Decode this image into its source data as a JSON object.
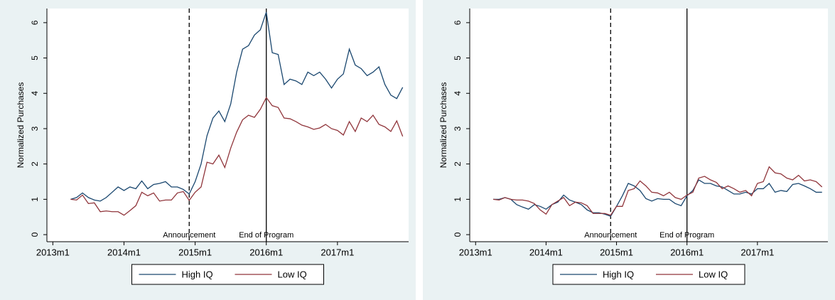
{
  "chart_data": [
    {
      "type": "line",
      "ylabel": "Normalized Purchases",
      "legend_position": "bottom",
      "xlim": [
        "2012m12",
        "2018m1"
      ],
      "ylim": [
        -0.2,
        6.4
      ],
      "xticks": [
        "2013m1",
        "2014m1",
        "2015m1",
        "2016m1",
        "2017m1"
      ],
      "yticks": [
        0,
        1,
        2,
        3,
        4,
        5,
        6
      ],
      "annotations": [
        {
          "x": "2014m12",
          "label": "Announcement",
          "style": "dashed"
        },
        {
          "x": "2016m1",
          "label": "End of Program",
          "style": "solid"
        }
      ],
      "x": [
        "2013m4",
        "2013m5",
        "2013m6",
        "2013m7",
        "2013m8",
        "2013m9",
        "2013m10",
        "2013m11",
        "2013m12",
        "2014m1",
        "2014m2",
        "2014m3",
        "2014m4",
        "2014m5",
        "2014m6",
        "2014m7",
        "2014m8",
        "2014m9",
        "2014m10",
        "2014m11",
        "2014m12",
        "2015m1",
        "2015m2",
        "2015m3",
        "2015m4",
        "2015m5",
        "2015m6",
        "2015m7",
        "2015m8",
        "2015m9",
        "2015m10",
        "2015m11",
        "2015m12",
        "2016m1",
        "2016m2",
        "2016m3",
        "2016m4",
        "2016m5",
        "2016m6",
        "2016m7",
        "2016m8",
        "2016m9",
        "2016m10",
        "2016m11",
        "2016m12",
        "2017m1",
        "2017m2",
        "2017m3",
        "2017m4",
        "2017m5",
        "2017m6",
        "2017m7",
        "2017m8",
        "2017m9",
        "2017m10",
        "2017m11",
        "2017m12"
      ],
      "series": [
        {
          "name": "High IQ",
          "color": "#1a476f",
          "values": [
            1.0,
            1.05,
            1.18,
            1.05,
            0.98,
            0.95,
            1.05,
            1.2,
            1.35,
            1.25,
            1.35,
            1.3,
            1.52,
            1.3,
            1.42,
            1.45,
            1.5,
            1.35,
            1.35,
            1.28,
            1.15,
            1.5,
            2.0,
            2.8,
            3.3,
            3.5,
            3.2,
            3.7,
            4.6,
            5.25,
            5.35,
            5.65,
            5.8,
            6.3,
            5.15,
            5.1,
            4.25,
            4.4,
            4.35,
            4.25,
            4.6,
            4.5,
            4.6,
            4.4,
            4.15,
            4.4,
            4.55,
            5.25,
            4.8,
            4.7,
            4.5,
            4.6,
            4.75,
            4.25,
            3.95,
            3.85,
            4.17
          ]
        },
        {
          "name": "Low IQ",
          "color": "#90353b",
          "values": [
            1.0,
            0.98,
            1.12,
            0.88,
            0.9,
            0.65,
            0.67,
            0.65,
            0.65,
            0.55,
            0.68,
            0.82,
            1.2,
            1.1,
            1.18,
            0.95,
            0.98,
            0.98,
            1.18,
            1.22,
            0.97,
            1.2,
            1.35,
            2.05,
            2.0,
            2.25,
            1.9,
            2.45,
            2.9,
            3.25,
            3.38,
            3.32,
            3.55,
            3.88,
            3.65,
            3.6,
            3.3,
            3.28,
            3.2,
            3.1,
            3.05,
            2.98,
            3.02,
            3.12,
            3.0,
            2.95,
            2.82,
            3.2,
            2.92,
            3.3,
            3.2,
            3.38,
            3.12,
            3.05,
            2.92,
            3.22,
            2.78
          ]
        }
      ]
    },
    {
      "type": "line",
      "ylabel": "Normalized Purchases",
      "legend_position": "bottom",
      "xlim": [
        "2012m12",
        "2018m1"
      ],
      "ylim": [
        -0.2,
        6.4
      ],
      "xticks": [
        "2013m1",
        "2014m1",
        "2015m1",
        "2016m1",
        "2017m1"
      ],
      "yticks": [
        0,
        1,
        2,
        3,
        4,
        5,
        6
      ],
      "annotations": [
        {
          "x": "2014m12",
          "label": "Announcement",
          "style": "dashed"
        },
        {
          "x": "2016m1",
          "label": "End of Program",
          "style": "solid"
        }
      ],
      "x": [
        "2013m4",
        "2013m5",
        "2013m6",
        "2013m7",
        "2013m8",
        "2013m9",
        "2013m10",
        "2013m11",
        "2013m12",
        "2014m1",
        "2014m2",
        "2014m3",
        "2014m4",
        "2014m5",
        "2014m6",
        "2014m7",
        "2014m8",
        "2014m9",
        "2014m10",
        "2014m11",
        "2014m12",
        "2015m1",
        "2015m2",
        "2015m3",
        "2015m4",
        "2015m5",
        "2015m6",
        "2015m7",
        "2015m8",
        "2015m9",
        "2015m10",
        "2015m11",
        "2015m12",
        "2016m1",
        "2016m2",
        "2016m3",
        "2016m4",
        "2016m5",
        "2016m6",
        "2016m7",
        "2016m8",
        "2016m9",
        "2016m10",
        "2016m11",
        "2016m12",
        "2017m1",
        "2017m2",
        "2017m3",
        "2017m4",
        "2017m5",
        "2017m6",
        "2017m7",
        "2017m8",
        "2017m9",
        "2017m10",
        "2017m11",
        "2017m12"
      ],
      "series": [
        {
          "name": "High IQ",
          "color": "#1a476f",
          "values": [
            1.0,
            1.0,
            1.05,
            1.0,
            0.85,
            0.78,
            0.72,
            0.85,
            0.8,
            0.72,
            0.85,
            0.92,
            1.12,
            0.98,
            0.92,
            0.85,
            0.7,
            0.62,
            0.62,
            0.58,
            0.52,
            0.8,
            1.1,
            1.45,
            1.38,
            1.25,
            1.02,
            0.95,
            1.02,
            1.0,
            1.0,
            0.88,
            0.82,
            1.1,
            1.25,
            1.55,
            1.45,
            1.45,
            1.38,
            1.35,
            1.25,
            1.15,
            1.15,
            1.2,
            1.15,
            1.3,
            1.3,
            1.45,
            1.2,
            1.25,
            1.22,
            1.42,
            1.45,
            1.38,
            1.3,
            1.2,
            1.2
          ]
        },
        {
          "name": "Low IQ",
          "color": "#90353b",
          "values": [
            1.0,
            0.98,
            1.05,
            1.0,
            0.98,
            0.98,
            0.95,
            0.88,
            0.7,
            0.58,
            0.85,
            0.95,
            1.05,
            0.82,
            0.92,
            0.9,
            0.82,
            0.6,
            0.6,
            0.6,
            0.55,
            0.8,
            0.8,
            1.25,
            1.3,
            1.52,
            1.38,
            1.2,
            1.18,
            1.1,
            1.2,
            1.05,
            1.0,
            1.12,
            1.2,
            1.6,
            1.65,
            1.55,
            1.48,
            1.3,
            1.38,
            1.3,
            1.2,
            1.25,
            1.1,
            1.45,
            1.5,
            1.92,
            1.75,
            1.72,
            1.6,
            1.55,
            1.68,
            1.52,
            1.55,
            1.5,
            1.35
          ]
        }
      ]
    }
  ]
}
